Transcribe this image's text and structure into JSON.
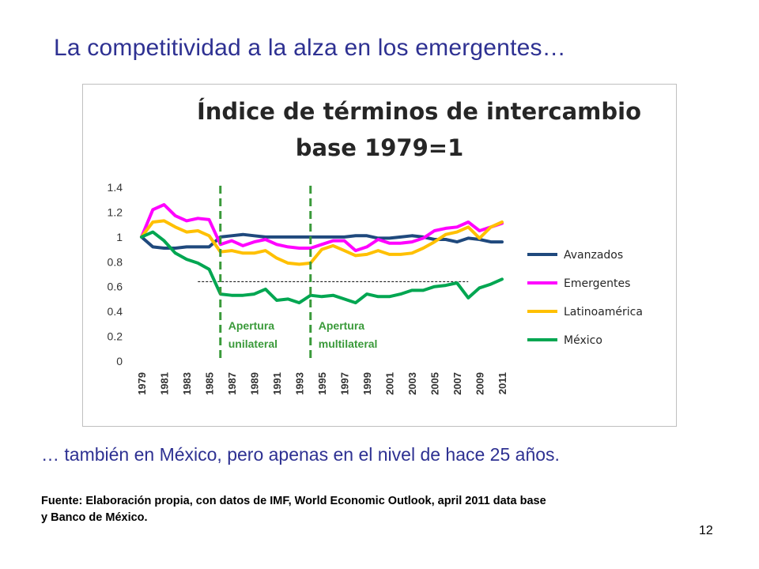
{
  "slide": {
    "title": "La competitividad a la alza en los emergentes…",
    "caption": "… también en México, pero apenas en el nivel de hace 25 años.",
    "source_line1": "Fuente: Elaboración propia, con datos de IMF, World Economic Outlook, april 2011 data base",
    "source_line2": "y Banco de México.",
    "page_number": "12"
  },
  "chart_data": {
    "type": "line",
    "title_line1": "Índice de términos de intercambio",
    "title_line2": "base 1979=1",
    "xlabel": "",
    "ylabel": "",
    "ylim": [
      0,
      1.4
    ],
    "yticks": [
      "0",
      "0.2",
      "0.4",
      "0.6",
      "0.8",
      "1",
      "1.2",
      "1.4"
    ],
    "xticks": [
      "1979",
      "1981",
      "1983",
      "1985",
      "1987",
      "1989",
      "1991",
      "1993",
      "1995",
      "1997",
      "1999",
      "2001",
      "2003",
      "2005",
      "2007",
      "2009",
      "2011"
    ],
    "x": [
      1979,
      1980,
      1981,
      1982,
      1983,
      1984,
      1985,
      1986,
      1987,
      1988,
      1989,
      1990,
      1991,
      1992,
      1993,
      1994,
      1995,
      1996,
      1997,
      1998,
      1999,
      2000,
      2001,
      2002,
      2003,
      2004,
      2005,
      2006,
      2007,
      2008,
      2009,
      2010,
      2011
    ],
    "grid": false,
    "legend_position": "right",
    "series": [
      {
        "name": "Avanzados",
        "color": "#1F497D",
        "values": [
          1.0,
          0.92,
          0.91,
          0.91,
          0.92,
          0.92,
          0.92,
          1.0,
          1.01,
          1.02,
          1.01,
          1.0,
          1.0,
          1.0,
          1.0,
          1.0,
          1.0,
          1.0,
          1.0,
          1.01,
          1.01,
          0.99,
          0.99,
          1.0,
          1.01,
          1.0,
          0.98,
          0.98,
          0.96,
          0.99,
          0.98,
          0.96,
          0.96
        ]
      },
      {
        "name": "Emergentes",
        "color": "#FF00FF",
        "values": [
          1.0,
          1.22,
          1.26,
          1.17,
          1.13,
          1.15,
          1.14,
          0.94,
          0.97,
          0.93,
          0.96,
          0.98,
          0.94,
          0.92,
          0.91,
          0.91,
          0.94,
          0.97,
          0.97,
          0.89,
          0.92,
          0.98,
          0.95,
          0.95,
          0.96,
          0.99,
          1.05,
          1.07,
          1.08,
          1.12,
          1.05,
          1.08,
          1.11
        ]
      },
      {
        "name": "Latinoamérica",
        "color": "#FFC000",
        "values": [
          1.0,
          1.12,
          1.13,
          1.08,
          1.04,
          1.05,
          1.01,
          0.88,
          0.89,
          0.87,
          0.87,
          0.89,
          0.83,
          0.79,
          0.78,
          0.79,
          0.9,
          0.93,
          0.89,
          0.85,
          0.86,
          0.89,
          0.86,
          0.86,
          0.87,
          0.91,
          0.96,
          1.02,
          1.04,
          1.08,
          0.99,
          1.08,
          1.12
        ]
      },
      {
        "name": "México",
        "color": "#00A651",
        "values": [
          1.0,
          1.04,
          0.97,
          0.87,
          0.82,
          0.79,
          0.74,
          0.54,
          0.53,
          0.53,
          0.54,
          0.58,
          0.49,
          0.5,
          0.47,
          0.53,
          0.52,
          0.53,
          0.5,
          0.47,
          0.54,
          0.52,
          0.52,
          0.54,
          0.57,
          0.57,
          0.6,
          0.61,
          0.63,
          0.51,
          0.59,
          0.62,
          0.66
        ]
      }
    ],
    "annotations": [
      {
        "id": "unilateral",
        "line1": "Apertura",
        "line2": "unilateral",
        "year": 1986
      },
      {
        "id": "multilateral",
        "line1": "Apertura",
        "line2": "multilateral",
        "year": 1994
      }
    ],
    "reference_level": 0.64,
    "annotation_color": "#3A9A3A"
  }
}
